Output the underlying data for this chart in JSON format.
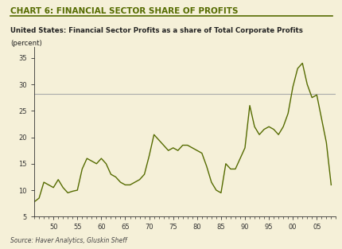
{
  "title": "CHART 6: FINANCIAL SECTOR SHARE OF PROFITS",
  "subtitle_line1": "United States: Financial Sector Profits as a share of Total Corporate Profits",
  "subtitle_line2": "(percent)",
  "source": "Source: Haver Analytics, Gluskin Sheff",
  "background_color": "#f5f0d8",
  "outer_background": "#f5f0d8",
  "line_color": "#556b00",
  "title_color": "#556b00",
  "subtitle_color": "#333333",
  "hline_value": 28.2,
  "hline_color": "#aaaaaa",
  "ylim": [
    5,
    37
  ],
  "yticks": [
    5,
    10,
    15,
    20,
    25,
    30,
    35
  ],
  "xticks": [
    50,
    55,
    60,
    65,
    70,
    75,
    80,
    85,
    90,
    95,
    0,
    5
  ],
  "xticklabels": [
    "50",
    "55",
    "60",
    "65",
    "70",
    "75",
    "80",
    "85",
    "90",
    "95",
    "00",
    "05"
  ],
  "xlim": [
    46,
    9
  ],
  "data_x": [
    46,
    47,
    48,
    49,
    50,
    51,
    52,
    53,
    54,
    55,
    56,
    57,
    58,
    59,
    60,
    61,
    62,
    63,
    64,
    65,
    66,
    67,
    68,
    69,
    70,
    71,
    72,
    73,
    74,
    75,
    76,
    77,
    78,
    79,
    80,
    81,
    82,
    83,
    84,
    85,
    86,
    87,
    88,
    89,
    90,
    91,
    92,
    93,
    94,
    95,
    96,
    97,
    98,
    99,
    100,
    101,
    102,
    103,
    104,
    105,
    106,
    107,
    108
  ],
  "data_y": [
    7.8,
    8.5,
    11.5,
    11.0,
    10.5,
    12.0,
    10.5,
    9.5,
    9.8,
    10.0,
    14.0,
    16.0,
    15.5,
    15.0,
    16.0,
    15.0,
    13.0,
    12.5,
    11.5,
    11.0,
    11.0,
    11.5,
    12.0,
    13.0,
    16.5,
    20.5,
    19.5,
    18.5,
    17.5,
    18.0,
    17.5,
    18.5,
    18.5,
    18.0,
    17.5,
    17.0,
    14.5,
    11.5,
    10.0,
    9.5,
    15.0,
    14.0,
    14.0,
    16.0,
    18.0,
    26.0,
    22.0,
    20.5,
    21.5,
    22.0,
    21.5,
    20.5,
    22.0,
    24.5,
    29.5,
    33.0,
    34.0,
    30.0,
    27.5,
    28.0,
    23.5,
    19.0,
    11.0
  ]
}
